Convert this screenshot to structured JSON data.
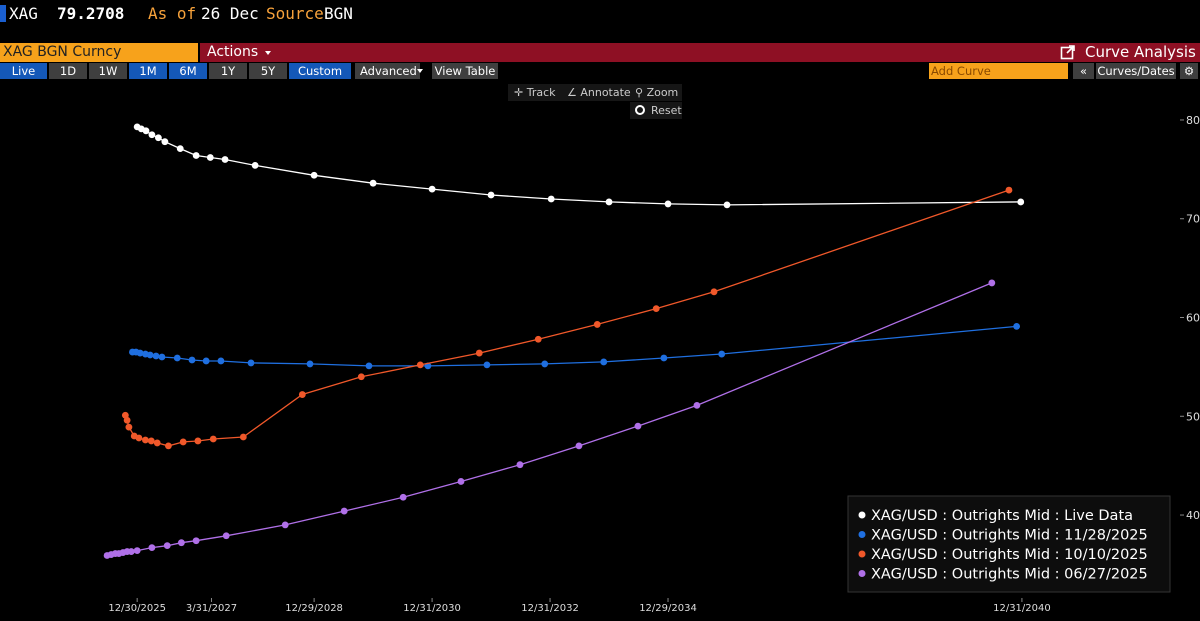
{
  "header": {
    "ticker": "XAG",
    "price": "79.2708",
    "as_of_label": "As of",
    "date": "26 Dec",
    "source_label": "Source",
    "source": "BGN"
  },
  "toolbar": {
    "security": "XAG BGN Curncy",
    "actions": "Actions",
    "function": "Curve Analysis",
    "ranges": [
      "Live",
      "1D",
      "1W",
      "1M",
      "6M",
      "1Y",
      "5Y",
      "Custom"
    ],
    "advanced": "Advanced",
    "view_table": "View Table",
    "add_curve": "Add Curve",
    "curves_dates": "Curves/Dates"
  },
  "chart_tools": {
    "track": "Track",
    "annotate": "Annotate",
    "zoom": "Zoom",
    "reset": "Reset"
  },
  "chart_data": {
    "type": "line",
    "xlim": [
      2025.36,
      2043.67
    ],
    "xticks": [
      {
        "value": 2025.99,
        "label": "12/30/2025"
      },
      {
        "value": 2027.25,
        "label": "3/31/2027"
      },
      {
        "value": 2028.99,
        "label": "12/29/2028"
      },
      {
        "value": 2030.99,
        "label": "12/31/2030"
      },
      {
        "value": 2032.99,
        "label": "12/31/2032"
      },
      {
        "value": 2034.99,
        "label": "12/29/2034"
      },
      {
        "value": 2040.99,
        "label": "12/31/2040"
      }
    ],
    "ylim": [
      31.6,
      83.54
    ],
    "yticks": [
      40,
      50,
      60,
      70,
      80
    ],
    "y_axis_side": "right",
    "grid": false,
    "legend": "bottom-right",
    "series": [
      {
        "name": "XAG/USD : Outrights Mid : Live Data",
        "color": "#ffffff",
        "x": [
          2025.99,
          2026.06,
          2026.14,
          2026.24,
          2026.35,
          2026.46,
          2026.72,
          2026.99,
          2027.23,
          2027.48,
          2027.99,
          2028.99,
          2029.99,
          2030.99,
          2031.99,
          2033.01,
          2033.99,
          2034.99,
          2035.99,
          2040.97
        ],
        "values": [
          79.3,
          79.1,
          78.9,
          78.5,
          78.2,
          77.8,
          77.1,
          76.4,
          76.2,
          76.0,
          75.4,
          74.4,
          73.6,
          73.0,
          72.4,
          72.0,
          71.7,
          71.5,
          71.4,
          71.7
        ]
      },
      {
        "name": "XAG/USD : Outrights Mid : 11/28/2025",
        "color": "#1f6fe0",
        "x": [
          2025.91,
          2025.97,
          2026.04,
          2026.13,
          2026.21,
          2026.31,
          2026.41,
          2026.67,
          2026.92,
          2027.16,
          2027.41,
          2027.92,
          2028.92,
          2029.92,
          2030.92,
          2031.92,
          2032.9,
          2033.9,
          2034.92,
          2035.9,
          2040.9
        ],
        "values": [
          56.5,
          56.5,
          56.4,
          56.3,
          56.2,
          56.1,
          56.0,
          55.9,
          55.7,
          55.6,
          55.6,
          55.4,
          55.3,
          55.1,
          55.1,
          55.2,
          55.3,
          55.5,
          55.9,
          56.3,
          59.1
        ]
      },
      {
        "name": "XAG/USD : Outrights Mid : 10/10/2025",
        "color": "#f0582a",
        "x": [
          2025.79,
          2025.82,
          2025.85,
          2025.94,
          2026.02,
          2026.13,
          2026.23,
          2026.33,
          2026.52,
          2026.77,
          2027.02,
          2027.28,
          2027.79,
          2028.79,
          2029.79,
          2030.79,
          2031.79,
          2032.79,
          2033.79,
          2034.79,
          2035.77,
          2040.77
        ],
        "values": [
          50.1,
          49.6,
          48.9,
          48.0,
          47.8,
          47.6,
          47.5,
          47.3,
          47.0,
          47.4,
          47.5,
          47.7,
          47.9,
          52.2,
          54.0,
          55.2,
          56.4,
          57.8,
          59.3,
          60.9,
          62.6,
          72.9
        ]
      },
      {
        "name": "XAG/USD : Outrights Mid : 06/27/2025",
        "color": "#b070e8",
        "x": [
          2025.48,
          2025.55,
          2025.62,
          2025.68,
          2025.75,
          2025.82,
          2025.89,
          2025.99,
          2026.24,
          2026.5,
          2026.74,
          2026.99,
          2027.5,
          2028.5,
          2029.5,
          2030.5,
          2031.48,
          2032.48,
          2033.48,
          2034.48,
          2035.48,
          2040.48
        ],
        "values": [
          35.9,
          36.0,
          36.1,
          36.1,
          36.2,
          36.3,
          36.3,
          36.4,
          36.7,
          36.9,
          37.2,
          37.4,
          37.9,
          39.0,
          40.4,
          41.8,
          43.4,
          45.1,
          47.0,
          49.0,
          51.1,
          63.5
        ]
      }
    ]
  }
}
